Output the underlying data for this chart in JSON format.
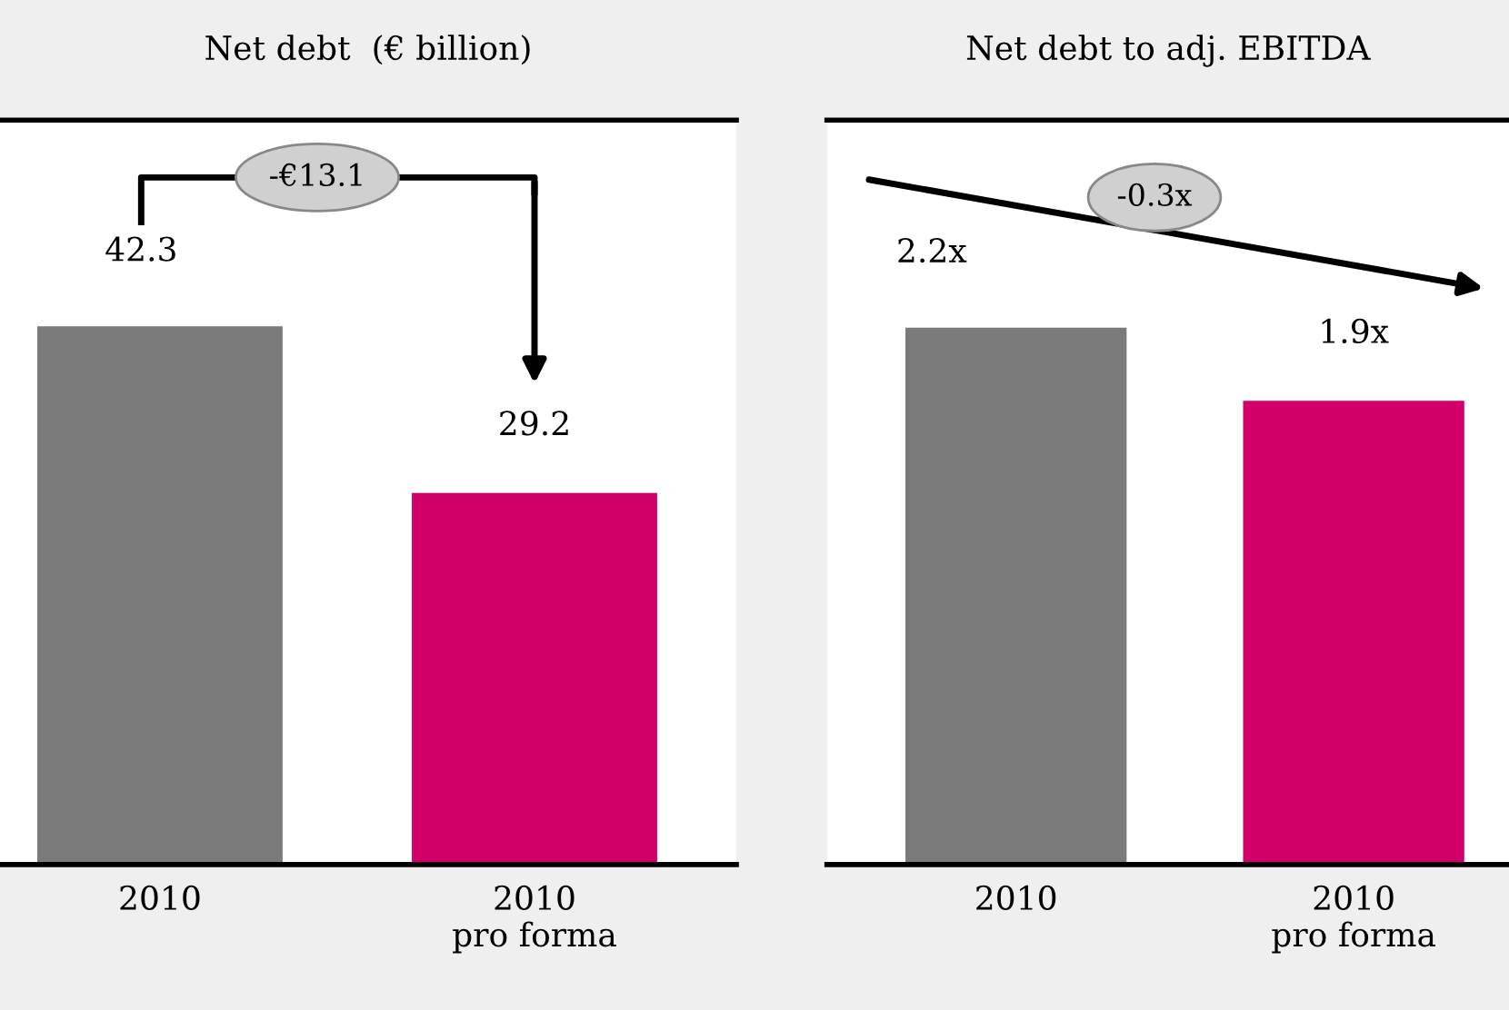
{
  "chart_data": [
    {
      "type": "bar",
      "title": "Net debt  (€ billion)",
      "categories": [
        "2010",
        "2010\npro forma"
      ],
      "values": [
        42.3,
        29.2
      ],
      "colors": [
        "#7a7a7a",
        "#d4006a"
      ],
      "data_labels": true,
      "ylim": [
        0,
        58.5
      ],
      "annotations": [
        "-€13.1"
      ]
    },
    {
      "type": "bar",
      "title": "Net debt to adj. EBITDA",
      "categories": [
        "2010",
        "2010\npro forma"
      ],
      "values": [
        2.2,
        1.9
      ],
      "colors": [
        "#7a7a7a",
        "#d4006a"
      ],
      "value_labels": [
        "2.2x",
        "1.9x"
      ],
      "ylim": [
        0,
        3.05
      ],
      "annotations": [
        "-0.3x"
      ]
    }
  ]
}
